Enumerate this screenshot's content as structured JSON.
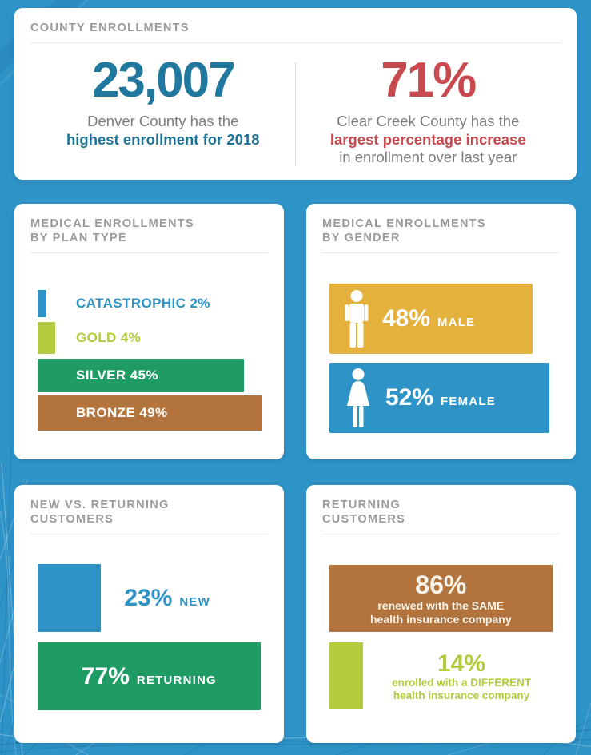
{
  "colors": {
    "background": "#2e93c7",
    "card": "#ffffff",
    "header_gray": "#9a9a9a",
    "divider": "#e7e7e7",
    "teal": "#21789e",
    "red": "#c8494e",
    "text_gray": "#7c7c7c",
    "blue": "#2e93c7",
    "lime": "#b5ca3d",
    "green": "#1f9c64",
    "brown": "#b2743c",
    "gold_yellow": "#e3b13c"
  },
  "county_card": {
    "title": "COUNTY ENROLLMENTS",
    "denver": {
      "value": "23,007",
      "line1": "Denver County has the",
      "line2": "highest enrollment for 2018"
    },
    "clear_creek": {
      "value": "71%",
      "line1": "Clear Creek County has the",
      "line2": "largest percentage increase",
      "line3": "in enrollment over last year"
    }
  },
  "plan_card": {
    "title_line1": "MEDICAL ENROLLMENTS",
    "title_line2": "BY PLAN TYPE",
    "bars": [
      {
        "name": "CATASTROPHIC",
        "label": "CATASTROPHIC 2%",
        "percent": 2,
        "color": "#2e93c7"
      },
      {
        "name": "GOLD",
        "label": "GOLD 4%",
        "percent": 4,
        "color": "#b5ca3d"
      },
      {
        "name": "SILVER",
        "label": "SILVER 45%",
        "percent": 45,
        "color": "#1f9c64"
      },
      {
        "name": "BRONZE",
        "label": "BRONZE 49%",
        "percent": 49,
        "color": "#b2743c"
      }
    ]
  },
  "gender_card": {
    "title_line1": "MEDICAL ENROLLMENTS",
    "title_line2": "BY GENDER",
    "male": {
      "percent_label": "48%",
      "label": "MALE",
      "percent": 48,
      "color": "#e3b13c"
    },
    "female": {
      "percent_label": "52%",
      "label": "FEMALE",
      "percent": 52,
      "color": "#2e93c7"
    }
  },
  "new_returning_card": {
    "title_line1": "NEW VS. RETURNING",
    "title_line2": "CUSTOMERS",
    "new": {
      "percent_label": "23%",
      "label": "NEW",
      "percent": 23,
      "color": "#2e93c7"
    },
    "returning": {
      "percent_label": "77%",
      "label": "RETURNING",
      "percent": 77,
      "color": "#1f9c64"
    }
  },
  "returning_card": {
    "title_line1": "RETURNING",
    "title_line2": "CUSTOMERS",
    "same": {
      "percent_label": "86%",
      "line1": "renewed with the SAME",
      "line2": "health insurance company",
      "percent": 86,
      "color": "#b2743c"
    },
    "different": {
      "percent_label": "14%",
      "line1": "enrolled with a DIFFERENT",
      "line2": "health insurance company",
      "percent": 14,
      "color": "#b5ca3d"
    }
  },
  "chart_data": [
    {
      "type": "stat",
      "title": "COUNTY ENROLLMENTS",
      "stats": [
        {
          "value": "23,007",
          "label": "Denver County has the highest enrollment for 2018"
        },
        {
          "value": "71%",
          "label": "Clear Creek County has the largest percentage increase in enrollment over last year"
        }
      ]
    },
    {
      "type": "bar",
      "title": "MEDICAL ENROLLMENTS BY PLAN TYPE",
      "categories": [
        "CATASTROPHIC",
        "GOLD",
        "SILVER",
        "BRONZE"
      ],
      "values": [
        2,
        4,
        45,
        49
      ],
      "unit": "%",
      "orientation": "horizontal",
      "colors": [
        "#2e93c7",
        "#b5ca3d",
        "#1f9c64",
        "#b2743c"
      ]
    },
    {
      "type": "bar",
      "title": "MEDICAL ENROLLMENTS BY GENDER",
      "categories": [
        "MALE",
        "FEMALE"
      ],
      "values": [
        48,
        52
      ],
      "unit": "%",
      "orientation": "horizontal",
      "colors": [
        "#e3b13c",
        "#2e93c7"
      ]
    },
    {
      "type": "bar",
      "title": "NEW VS. RETURNING CUSTOMERS",
      "categories": [
        "NEW",
        "RETURNING"
      ],
      "values": [
        23,
        77
      ],
      "unit": "%",
      "orientation": "horizontal",
      "colors": [
        "#2e93c7",
        "#1f9c64"
      ]
    },
    {
      "type": "bar",
      "title": "RETURNING CUSTOMERS",
      "categories": [
        "renewed with the SAME health insurance company",
        "enrolled with a DIFFERENT health insurance company"
      ],
      "values": [
        86,
        14
      ],
      "unit": "%",
      "orientation": "horizontal",
      "colors": [
        "#b2743c",
        "#b5ca3d"
      ]
    }
  ]
}
